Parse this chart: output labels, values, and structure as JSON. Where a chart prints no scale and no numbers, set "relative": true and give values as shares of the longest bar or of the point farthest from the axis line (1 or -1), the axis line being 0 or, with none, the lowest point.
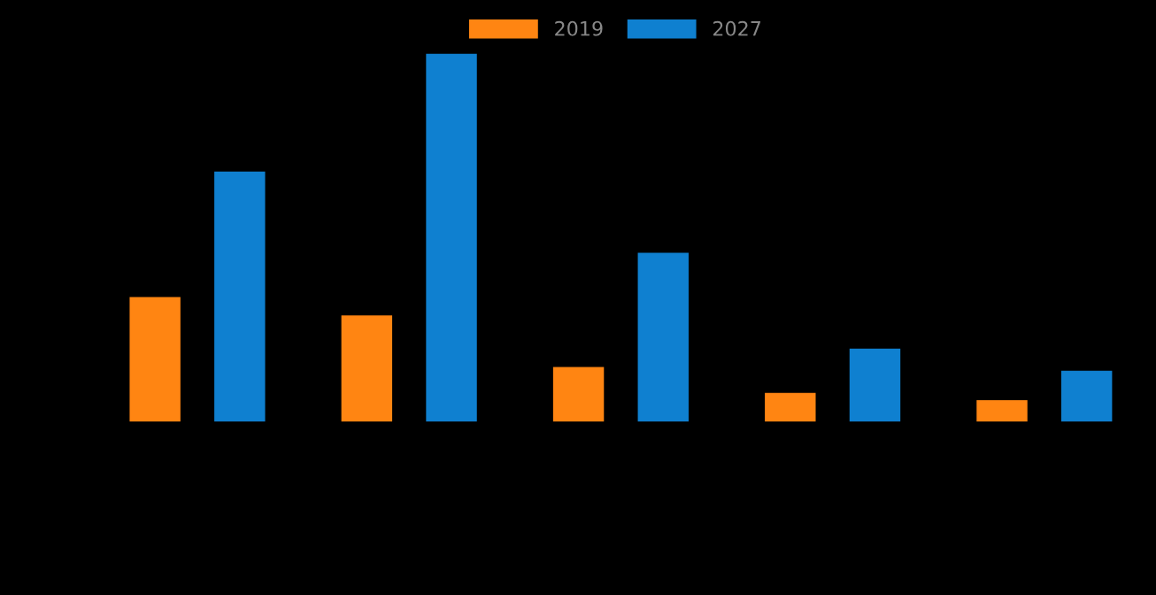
{
  "chart_data": {
    "type": "bar",
    "relative": true,
    "categories": [
      null,
      null,
      null,
      null,
      null
    ],
    "series": [
      {
        "name": "2019",
        "color": "#ff8512",
        "values": [
          0.34,
          0.29,
          0.15,
          0.08,
          0.06
        ]
      },
      {
        "name": "2027",
        "color": "#0f80d0",
        "values": [
          0.68,
          1.0,
          0.46,
          0.2,
          0.14
        ]
      }
    ],
    "legend": "top",
    "grid": false
  }
}
